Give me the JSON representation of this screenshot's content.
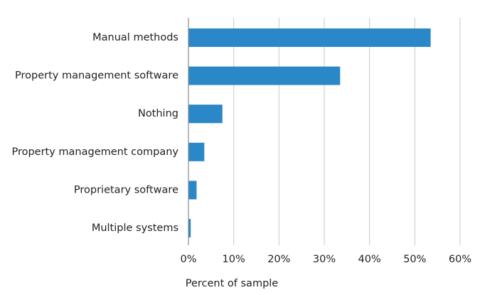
{
  "chart_data": {
    "type": "bar",
    "orientation": "horizontal",
    "categories": [
      "Manual methods",
      "Property management software",
      "Nothing",
      "Property management company",
      "Proprietary software",
      "Multiple systems"
    ],
    "values": [
      53.5,
      33.5,
      7.5,
      3.5,
      1.8,
      0.5
    ],
    "xlabel": "Percent of sample",
    "ylabel": "",
    "xlim": [
      0,
      60
    ],
    "x_ticks": [
      0,
      10,
      20,
      30,
      40,
      50,
      60
    ],
    "x_tick_labels": [
      "0%",
      "10%",
      "20%",
      "30%",
      "40%",
      "50%",
      "60%"
    ],
    "grid": "vertical",
    "bar_color": "#2a87c8"
  }
}
